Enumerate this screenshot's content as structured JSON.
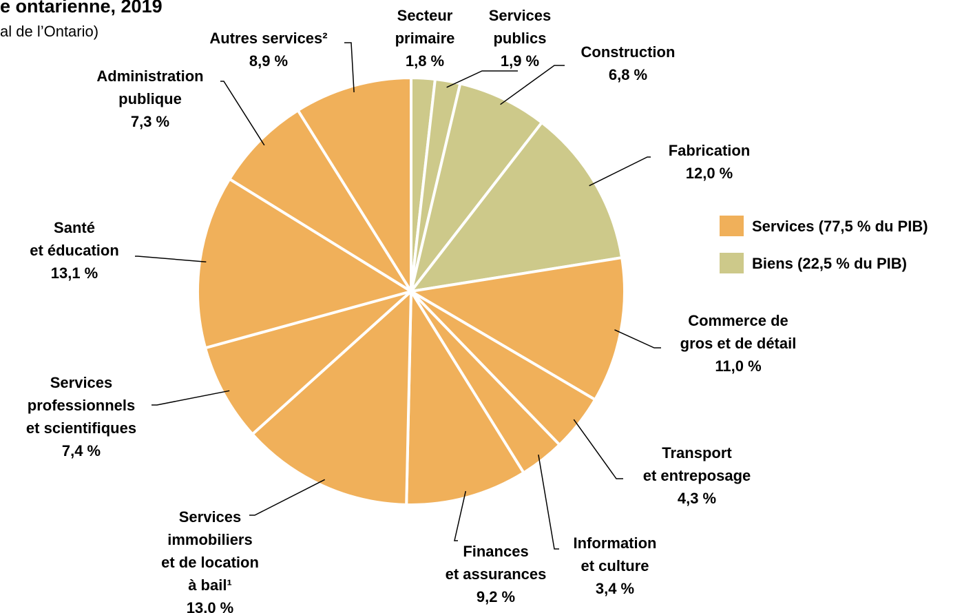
{
  "chart_data": {
    "type": "pie",
    "title": "e ontarienne, 2019",
    "subtitle": "al de l’Ontario)",
    "categories": [
      [
        "Secteur",
        "primaire"
      ],
      [
        "Services",
        "publics"
      ],
      [
        "Construction"
      ],
      [
        "Fabrication"
      ],
      [
        "Commerce de",
        "gros et de détail"
      ],
      [
        "Transport",
        "et entreposage"
      ],
      [
        "Information",
        "et culture"
      ],
      [
        "Finances",
        "et assurances"
      ],
      [
        "Services",
        "immobiliers",
        "et de location",
        "à bail¹"
      ],
      [
        "Services",
        "professionnels",
        "et scientifiques"
      ],
      [
        "Santé",
        "et éducation"
      ],
      [
        "Administration",
        "publique"
      ],
      [
        "Autres services²"
      ]
    ],
    "values": [
      1.8,
      1.9,
      6.8,
      12.0,
      11.0,
      4.3,
      3.4,
      9.2,
      13.0,
      7.4,
      13.1,
      7.3,
      8.9
    ],
    "value_labels": [
      "1,8 %",
      "1,9 %",
      "6,8 %",
      "12,0 %",
      "11,0 %",
      "4,3 %",
      "3,4 %",
      "9,2 %",
      "13,0 %",
      "7,4 %",
      "13,1 %",
      "7,3 %",
      "8,9 %"
    ],
    "groups": [
      1,
      1,
      1,
      1,
      0,
      0,
      0,
      0,
      0,
      0,
      0,
      0,
      0
    ],
    "legend": [
      {
        "name": "Services (77,5 % du PIB)",
        "color": "#f0b05a"
      },
      {
        "name": "Biens (22,5 % du PIB)",
        "color": "#cdc98a"
      }
    ]
  }
}
